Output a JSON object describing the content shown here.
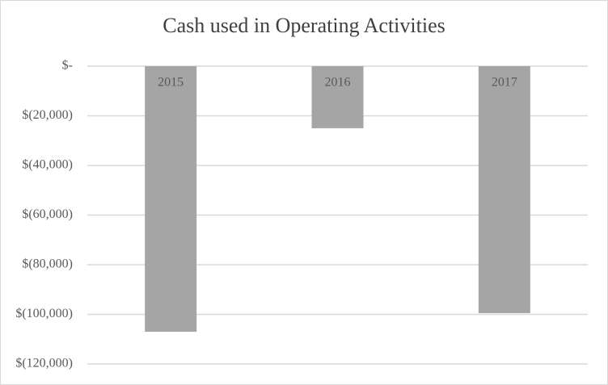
{
  "chart_data": {
    "type": "bar",
    "title": "Cash used in Operating Activities",
    "categories": [
      "2015",
      "2016",
      "2017"
    ],
    "values": [
      -107000,
      -25000,
      -99500
    ],
    "color": "#a5a5a5",
    "ylim": [
      -120000,
      0
    ],
    "yticks": [
      {
        "value": 0,
        "label": "$-"
      },
      {
        "value": -20000,
        "label": "$(20,000)"
      },
      {
        "value": -40000,
        "label": "$(40,000)"
      },
      {
        "value": -60000,
        "label": "$(60,000)"
      },
      {
        "value": -80000,
        "label": "$(80,000)"
      },
      {
        "value": -100000,
        "label": "$(100,000)"
      },
      {
        "value": -120000,
        "label": "$(120,000)"
      }
    ],
    "grid": true
  }
}
